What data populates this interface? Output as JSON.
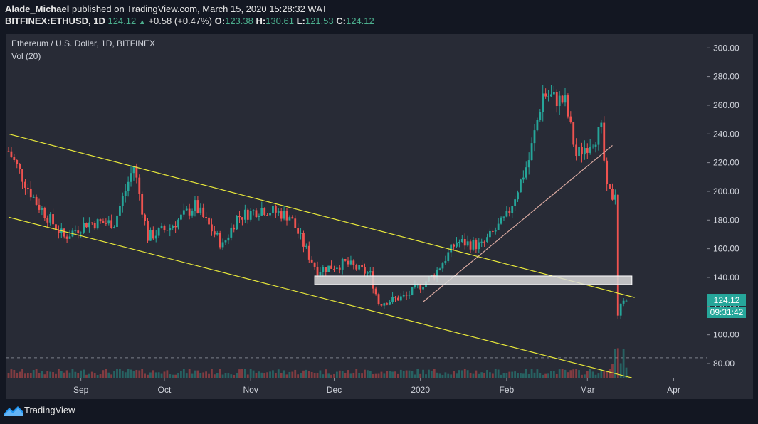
{
  "header": {
    "author": "Alade_Michael",
    "published_text": "published on TradingView.com, March 15, 2020 15:28:32 WAT",
    "symbol": "BITFINEX:ETHUSD, 1D",
    "last": "124.12",
    "change": "+0.58 (+0.47%)",
    "o_label": "O:",
    "o_val": "123.38",
    "h_label": "H:",
    "h_val": "130.61",
    "l_label": "L:",
    "l_val": "121.53",
    "c_label": "C:",
    "c_val": "124.12"
  },
  "legend": {
    "title": "Ethereum / U.S. Dollar, 1D, BITFINEX",
    "volume": "Vol (20)"
  },
  "footer": {
    "brand": "TradingView"
  },
  "colors": {
    "up": "#26a69a",
    "down": "#ef5350",
    "channel": "#e8e83a",
    "trend": "#d9a9a0",
    "zone": "#d8d8d8",
    "price_tag": "#26a69a"
  },
  "chart_data": {
    "type": "candlestick",
    "ylim": [
      70,
      307
    ],
    "y_ticks": [
      80,
      100,
      120,
      140,
      160,
      180,
      200,
      220,
      240,
      260,
      280,
      300
    ],
    "y_tick_labels": [
      "80.00",
      "100.00",
      "120.00",
      "140.00",
      "160.00",
      "180.00",
      "200.00",
      "220.00",
      "240.00",
      "260.00",
      "280.00",
      "300.00"
    ],
    "x_start": "2019-08-06",
    "x_ticks": [
      {
        "label": "Sep",
        "date": "2019-09-01"
      },
      {
        "label": "Oct",
        "date": "2019-10-01"
      },
      {
        "label": "Nov",
        "date": "2019-11-01"
      },
      {
        "label": "Dec",
        "date": "2019-12-01"
      },
      {
        "label": "2020",
        "date": "2020-01-01"
      },
      {
        "label": "Feb",
        "date": "2020-02-01"
      },
      {
        "label": "Mar",
        "date": "2020-03-01"
      },
      {
        "label": "Apr",
        "date": "2020-04-01"
      }
    ],
    "price_path": [
      {
        "date": "2019-08-06",
        "close": 228
      },
      {
        "date": "2019-08-16",
        "close": 192
      },
      {
        "date": "2019-08-26",
        "close": 168
      },
      {
        "date": "2019-09-03",
        "close": 178
      },
      {
        "date": "2019-09-13",
        "close": 178
      },
      {
        "date": "2019-09-20",
        "close": 218
      },
      {
        "date": "2019-09-25",
        "close": 168
      },
      {
        "date": "2019-10-03",
        "close": 175
      },
      {
        "date": "2019-10-12",
        "close": 190
      },
      {
        "date": "2019-10-22",
        "close": 162
      },
      {
        "date": "2019-10-27",
        "close": 182
      },
      {
        "date": "2019-11-05",
        "close": 188
      },
      {
        "date": "2019-11-15",
        "close": 183
      },
      {
        "date": "2019-11-22",
        "close": 155
      },
      {
        "date": "2019-11-25",
        "close": 145
      },
      {
        "date": "2019-12-05",
        "close": 150
      },
      {
        "date": "2019-12-14",
        "close": 142
      },
      {
        "date": "2019-12-17",
        "close": 122
      },
      {
        "date": "2019-12-27",
        "close": 127
      },
      {
        "date": "2020-01-06",
        "close": 142
      },
      {
        "date": "2020-01-14",
        "close": 165
      },
      {
        "date": "2020-01-23",
        "close": 162
      },
      {
        "date": "2020-02-01",
        "close": 182
      },
      {
        "date": "2020-02-09",
        "close": 222
      },
      {
        "date": "2020-02-14",
        "close": 268
      },
      {
        "date": "2020-02-22",
        "close": 262
      },
      {
        "date": "2020-02-26",
        "close": 225
      },
      {
        "date": "2020-03-06",
        "close": 242
      },
      {
        "date": "2020-03-08",
        "close": 200
      },
      {
        "date": "2020-03-11",
        "close": 195
      },
      {
        "date": "2020-03-12",
        "close": 112
      },
      {
        "date": "2020-03-14",
        "close": 126
      },
      {
        "date": "2020-03-15",
        "close": 124
      }
    ],
    "last_price": {
      "value": 124.12,
      "label": "124.12",
      "countdown": "09:31:42"
    },
    "dashed_level": 84,
    "channel": [
      {
        "p1": {
          "date": "2019-08-06",
          "price": 240
        },
        "p2": {
          "date": "2020-03-18",
          "price": 126
        }
      },
      {
        "p1": {
          "date": "2019-08-06",
          "price": 182
        },
        "p2": {
          "date": "2020-03-17",
          "price": 70
        }
      }
    ],
    "trendline": {
      "p1": {
        "date": "2020-01-02",
        "price": 123
      },
      "p2": {
        "date": "2020-03-10",
        "price": 232
      }
    },
    "zone": {
      "from": "2019-11-24",
      "to": "2020-03-17",
      "low": 135,
      "high": 141
    }
  }
}
